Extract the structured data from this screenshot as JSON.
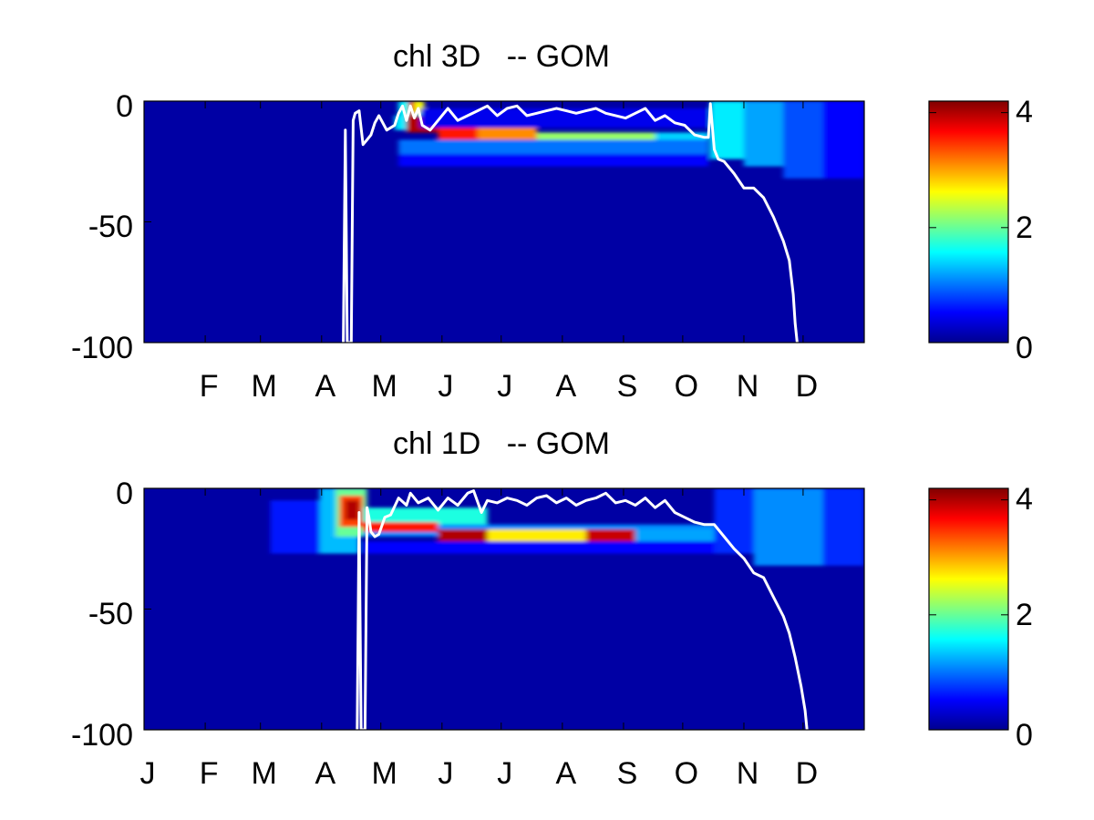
{
  "chart_data": [
    {
      "type": "heatmap",
      "title": "chl 3D   -- GOM",
      "ylim": [
        -100,
        0
      ],
      "yticks": [
        {
          "value": 0,
          "label": "0"
        },
        {
          "value": -50,
          "label": "-50"
        },
        {
          "value": -100,
          "label": "-100"
        }
      ],
      "xlim_day": [
        1,
        366
      ],
      "xticks": [
        {
          "day": 32,
          "label": "F"
        },
        {
          "day": 60,
          "label": "M"
        },
        {
          "day": 91,
          "label": "A"
        },
        {
          "day": 121,
          "label": "M"
        },
        {
          "day": 152,
          "label": "J"
        },
        {
          "day": 182,
          "label": "J"
        },
        {
          "day": 213,
          "label": "A"
        },
        {
          "day": 244,
          "label": "S"
        },
        {
          "day": 274,
          "label": "O"
        },
        {
          "day": 305,
          "label": "N"
        },
        {
          "day": 335,
          "label": "D"
        }
      ],
      "colormap": "jet",
      "clim": [
        0,
        4.2
      ],
      "colorbar_ticks": [
        {
          "value": 4,
          "label": "4"
        },
        {
          "value": 2,
          "label": "2"
        },
        {
          "value": 0,
          "label": "0"
        }
      ],
      "background_value": 0.15,
      "chl_patches": [
        {
          "day_from": 130,
          "day_to": 141,
          "depth_top": 0,
          "depth_bottom": -6,
          "value": 1.6
        },
        {
          "day_from": 135,
          "day_to": 138,
          "depth_top": 0,
          "depth_bottom": -6,
          "value": 3.8
        },
        {
          "day_from": 138,
          "day_to": 143,
          "depth_top": 0,
          "depth_bottom": -5,
          "value": 2.6
        },
        {
          "day_from": 128,
          "day_to": 134,
          "depth_top": -6,
          "depth_bottom": -12,
          "value": 1.5
        },
        {
          "day_from": 134,
          "day_to": 150,
          "depth_top": -6,
          "depth_bottom": -13,
          "value": 4.0
        },
        {
          "day_from": 150,
          "day_to": 170,
          "depth_top": -10,
          "depth_bottom": -16,
          "value": 3.6
        },
        {
          "day_from": 170,
          "day_to": 200,
          "depth_top": -11,
          "depth_bottom": -16,
          "value": 3.1
        },
        {
          "day_from": 200,
          "day_to": 260,
          "depth_top": -13,
          "depth_bottom": -17,
          "value": 2.2
        },
        {
          "day_from": 260,
          "day_to": 287,
          "depth_top": -13,
          "depth_bottom": -17,
          "value": 1.4
        },
        {
          "day_from": 130,
          "day_to": 287,
          "depth_top": -16,
          "depth_bottom": -22,
          "value": 1.0
        },
        {
          "day_from": 130,
          "day_to": 287,
          "depth_top": -22,
          "depth_bottom": -27,
          "value": 0.55
        },
        {
          "day_from": 141,
          "day_to": 287,
          "depth_top": -3,
          "depth_bottom": -11,
          "value": 0.45
        },
        {
          "day_from": 288,
          "day_to": 305,
          "depth_top": 0,
          "depth_bottom": -24,
          "value": 1.5
        },
        {
          "day_from": 305,
          "day_to": 325,
          "depth_top": 0,
          "depth_bottom": -27,
          "value": 1.2
        },
        {
          "day_from": 325,
          "day_to": 345,
          "depth_top": 0,
          "depth_bottom": -32,
          "value": 0.85
        },
        {
          "day_from": 345,
          "day_to": 366,
          "depth_top": 0,
          "depth_bottom": -32,
          "value": 0.55
        }
      ],
      "mixed_layer_depth": {
        "day": [
          102,
          103,
          104,
          105,
          106,
          107,
          108,
          110,
          112,
          114,
          116,
          118,
          120,
          124,
          128,
          130,
          132,
          134,
          136,
          138,
          140,
          142,
          146,
          150,
          155,
          160,
          165,
          170,
          175,
          180,
          185,
          190,
          195,
          200,
          205,
          210,
          215,
          220,
          225,
          230,
          235,
          240,
          245,
          250,
          255,
          260,
          265,
          270,
          275,
          280,
          285,
          287,
          288,
          290,
          292,
          295,
          300,
          305,
          310,
          315,
          320,
          325,
          328,
          330,
          331,
          332
        ],
        "depth": [
          -100,
          -12,
          -100,
          -100,
          -100,
          -8,
          -5,
          -4,
          -18,
          -16,
          -14,
          -9,
          -6,
          -12,
          -10,
          -5,
          -2,
          -8,
          -2,
          -7,
          -3,
          -10,
          -12,
          -8,
          -3,
          -8,
          -6,
          -4,
          -2,
          -6,
          -3,
          -2,
          -6,
          -5,
          -4,
          -3,
          -4,
          -5,
          -4,
          -3,
          -5,
          -6,
          -7,
          -5,
          -3,
          -8,
          -6,
          -9,
          -10,
          -14,
          -15,
          -15,
          -1,
          -20,
          -24,
          -25,
          -30,
          -36,
          -36,
          -40,
          -48,
          -58,
          -66,
          -80,
          -92,
          -100
        ]
      }
    },
    {
      "type": "heatmap",
      "title": "chl 1D   -- GOM",
      "ylim": [
        -100,
        0
      ],
      "yticks": [
        {
          "value": 0,
          "label": "0"
        },
        {
          "value": -50,
          "label": "-50"
        },
        {
          "value": -100,
          "label": "-100"
        }
      ],
      "xlim_day": [
        1,
        366
      ],
      "xticks": [
        {
          "day": 1,
          "label": "J"
        },
        {
          "day": 32,
          "label": "F"
        },
        {
          "day": 60,
          "label": "M"
        },
        {
          "day": 91,
          "label": "A"
        },
        {
          "day": 121,
          "label": "M"
        },
        {
          "day": 152,
          "label": "J"
        },
        {
          "day": 182,
          "label": "J"
        },
        {
          "day": 213,
          "label": "A"
        },
        {
          "day": 244,
          "label": "S"
        },
        {
          "day": 274,
          "label": "O"
        },
        {
          "day": 305,
          "label": "N"
        },
        {
          "day": 335,
          "label": "D"
        }
      ],
      "colormap": "jet",
      "clim": [
        0,
        4.2
      ],
      "colorbar_ticks": [
        {
          "value": 4,
          "label": "4"
        },
        {
          "value": 2,
          "label": "2"
        },
        {
          "value": 0,
          "label": "0"
        }
      ],
      "background_value": 0.15,
      "chl_patches": [
        {
          "day_from": 65,
          "day_to": 90,
          "depth_top": -5,
          "depth_bottom": -27,
          "value": 0.6
        },
        {
          "day_from": 90,
          "day_to": 110,
          "depth_top": 0,
          "depth_bottom": -27,
          "value": 1.3
        },
        {
          "day_from": 98,
          "day_to": 114,
          "depth_top": 0,
          "depth_bottom": -20,
          "value": 2.0
        },
        {
          "day_from": 100,
          "day_to": 112,
          "depth_top": -3,
          "depth_bottom": -16,
          "value": 3.4
        },
        {
          "day_from": 103,
          "day_to": 110,
          "depth_top": -5,
          "depth_bottom": -13,
          "value": 4.0
        },
        {
          "day_from": 112,
          "day_to": 175,
          "depth_top": -8,
          "depth_bottom": -15,
          "value": 1.7
        },
        {
          "day_from": 112,
          "day_to": 290,
          "depth_top": -15,
          "depth_bottom": -20,
          "value": 1.1
        },
        {
          "day_from": 112,
          "day_to": 150,
          "depth_top": -14,
          "depth_bottom": -18,
          "value": 3.6
        },
        {
          "day_from": 150,
          "day_to": 175,
          "depth_top": -17,
          "depth_bottom": -22,
          "value": 4.0
        },
        {
          "day_from": 175,
          "day_to": 225,
          "depth_top": -17,
          "depth_bottom": -22,
          "value": 2.7
        },
        {
          "day_from": 225,
          "day_to": 250,
          "depth_top": -17,
          "depth_bottom": -22,
          "value": 3.9
        },
        {
          "day_from": 250,
          "day_to": 290,
          "depth_top": -17,
          "depth_bottom": -22,
          "value": 1.2
        },
        {
          "day_from": 112,
          "day_to": 290,
          "depth_top": -22,
          "depth_bottom": -27,
          "value": 0.55
        },
        {
          "day_from": 290,
          "day_to": 310,
          "depth_top": 0,
          "depth_bottom": -27,
          "value": 0.7
        },
        {
          "day_from": 310,
          "day_to": 345,
          "depth_top": 0,
          "depth_bottom": -32,
          "value": 1.1
        },
        {
          "day_from": 345,
          "day_to": 366,
          "depth_top": 0,
          "depth_bottom": -32,
          "value": 0.7
        }
      ],
      "mixed_layer_depth": {
        "day": [
          109,
          110,
          111,
          112,
          113,
          114,
          115,
          116,
          118,
          120,
          123,
          126,
          130,
          134,
          136,
          140,
          145,
          150,
          155,
          160,
          165,
          168,
          172,
          175,
          180,
          185,
          190,
          195,
          200,
          205,
          210,
          215,
          220,
          225,
          230,
          235,
          240,
          245,
          250,
          255,
          260,
          265,
          270,
          275,
          280,
          285,
          290,
          295,
          300,
          305,
          310,
          315,
          320,
          325,
          328,
          331,
          334,
          336,
          337
        ],
        "depth": [
          -100,
          -10,
          -100,
          -100,
          -100,
          -8,
          -12,
          -18,
          -20,
          -19,
          -12,
          -11,
          -4,
          -7,
          -2,
          -6,
          -4,
          -9,
          -4,
          -7,
          -2,
          -1,
          -10,
          -5,
          -6,
          -4,
          -5,
          -7,
          -4,
          -3,
          -6,
          -4,
          -7,
          -5,
          -4,
          -2,
          -6,
          -5,
          -7,
          -4,
          -8,
          -5,
          -10,
          -12,
          -14,
          -15,
          -15,
          -20,
          -25,
          -29,
          -35,
          -37,
          -45,
          -53,
          -60,
          -70,
          -82,
          -92,
          -100
        ]
      }
    }
  ]
}
